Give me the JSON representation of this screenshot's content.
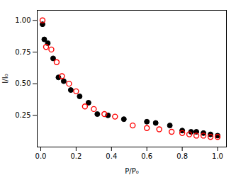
{
  "chart_data": {
    "type": "scatter",
    "xlabel": "P/P₀",
    "ylabel": "I/I₀",
    "xlim": [
      -0.02,
      1.05
    ],
    "ylim": [
      0.0,
      1.08
    ],
    "xticks": [
      {
        "value": 0.0,
        "label": "0.0"
      },
      0.2,
      0.4,
      0.6,
      0.8,
      {
        "value": 1.0,
        "label": "1.0"
      }
    ],
    "yticks": [
      0.25,
      {
        "value": 0.5,
        "label": "0.50"
      },
      0.75,
      {
        "value": 1.0,
        "label": "1.00"
      }
    ],
    "grid": false,
    "series": [
      {
        "color": "#000000",
        "marker": "filled_circle",
        "x": [
          0.01,
          0.02,
          0.04,
          0.07,
          0.1,
          0.13,
          0.17,
          0.22,
          0.27,
          0.32,
          0.38,
          0.47,
          0.6,
          0.65,
          0.73,
          0.8,
          0.85,
          0.88,
          0.92,
          0.96,
          1.0
        ],
        "values": [
          0.97,
          0.85,
          0.82,
          0.7,
          0.55,
          0.52,
          0.45,
          0.4,
          0.35,
          0.26,
          0.25,
          0.22,
          0.2,
          0.19,
          0.17,
          0.13,
          0.12,
          0.12,
          0.11,
          0.1,
          0.09
        ]
      },
      {
        "color": "#ff0000",
        "marker": "open_circle",
        "x": [
          0.01,
          0.03,
          0.06,
          0.09,
          0.12,
          0.16,
          0.2,
          0.25,
          0.3,
          0.36,
          0.42,
          0.52,
          0.6,
          0.67,
          0.74,
          0.8,
          0.84,
          0.88,
          0.92,
          0.96,
          1.0
        ],
        "values": [
          1.0,
          0.79,
          0.77,
          0.67,
          0.56,
          0.5,
          0.44,
          0.32,
          0.3,
          0.26,
          0.24,
          0.17,
          0.15,
          0.14,
          0.12,
          0.11,
          0.1,
          0.09,
          0.09,
          0.08,
          0.08
        ]
      }
    ]
  }
}
